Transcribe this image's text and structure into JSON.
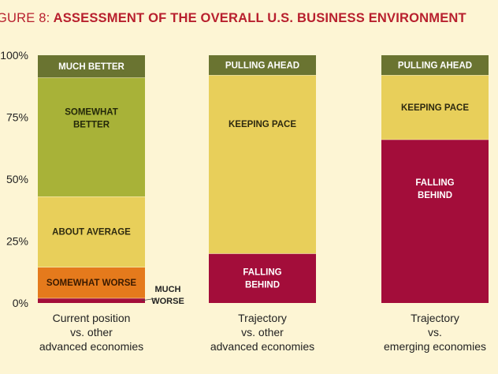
{
  "title_prefix": "GURE 8:",
  "title_text": "ASSESSMENT OF THE OVERALL U.S. BUSINESS ENVIRONMENT",
  "chart_data": {
    "type": "bar",
    "stacked": true,
    "ylim": [
      0,
      100
    ],
    "y_ticks": [
      "0%",
      "25%",
      "50%",
      "75%",
      "100%"
    ],
    "grid": false,
    "bars": [
      {
        "category": [
          "Current position",
          "vs. other",
          "advanced economies"
        ],
        "segments": [
          {
            "label": "MUCH WORSE",
            "value": 2,
            "color": "#a30d3a",
            "annotation_outside": true
          },
          {
            "label": "SOMEWHAT WORSE",
            "value": 12.5,
            "color": "#e57a1c",
            "text_color": "#3a1a00"
          },
          {
            "label": "ABOUT AVERAGE",
            "value": 28.5,
            "color": "#e8cf5a",
            "text_color": "#2e2a10"
          },
          {
            "label": "SOMEWHAT BETTER",
            "value": 48,
            "color": "#a8b238",
            "text_color": "#24280a"
          },
          {
            "label": "MUCH BETTER",
            "value": 9,
            "color": "#6a7431",
            "text_color": "#ffffff"
          }
        ]
      },
      {
        "category": [
          "Trajectory",
          "vs. other",
          "advanced economies"
        ],
        "segments": [
          {
            "label": "FALLING BEHIND",
            "value": 20,
            "color": "#a30d3a",
            "text_color": "#ffffff"
          },
          {
            "label": "KEEPING PACE",
            "value": 72,
            "color": "#e8cf5a",
            "text_color": "#2e2a10"
          },
          {
            "label": "PULLING AHEAD",
            "value": 8,
            "color": "#6a7431",
            "text_color": "#ffffff"
          }
        ]
      },
      {
        "category": [
          "Trajectory",
          "vs.",
          "emerging economies"
        ],
        "segments": [
          {
            "label": "FALLING BEHIND",
            "value": 66,
            "color": "#a30d3a",
            "text_color": "#ffffff"
          },
          {
            "label": "KEEPING PACE",
            "value": 26,
            "color": "#e8cf5a",
            "text_color": "#2e2a10"
          },
          {
            "label": "PULLING AHEAD",
            "value": 8,
            "color": "#6a7431",
            "text_color": "#ffffff"
          }
        ]
      }
    ]
  }
}
